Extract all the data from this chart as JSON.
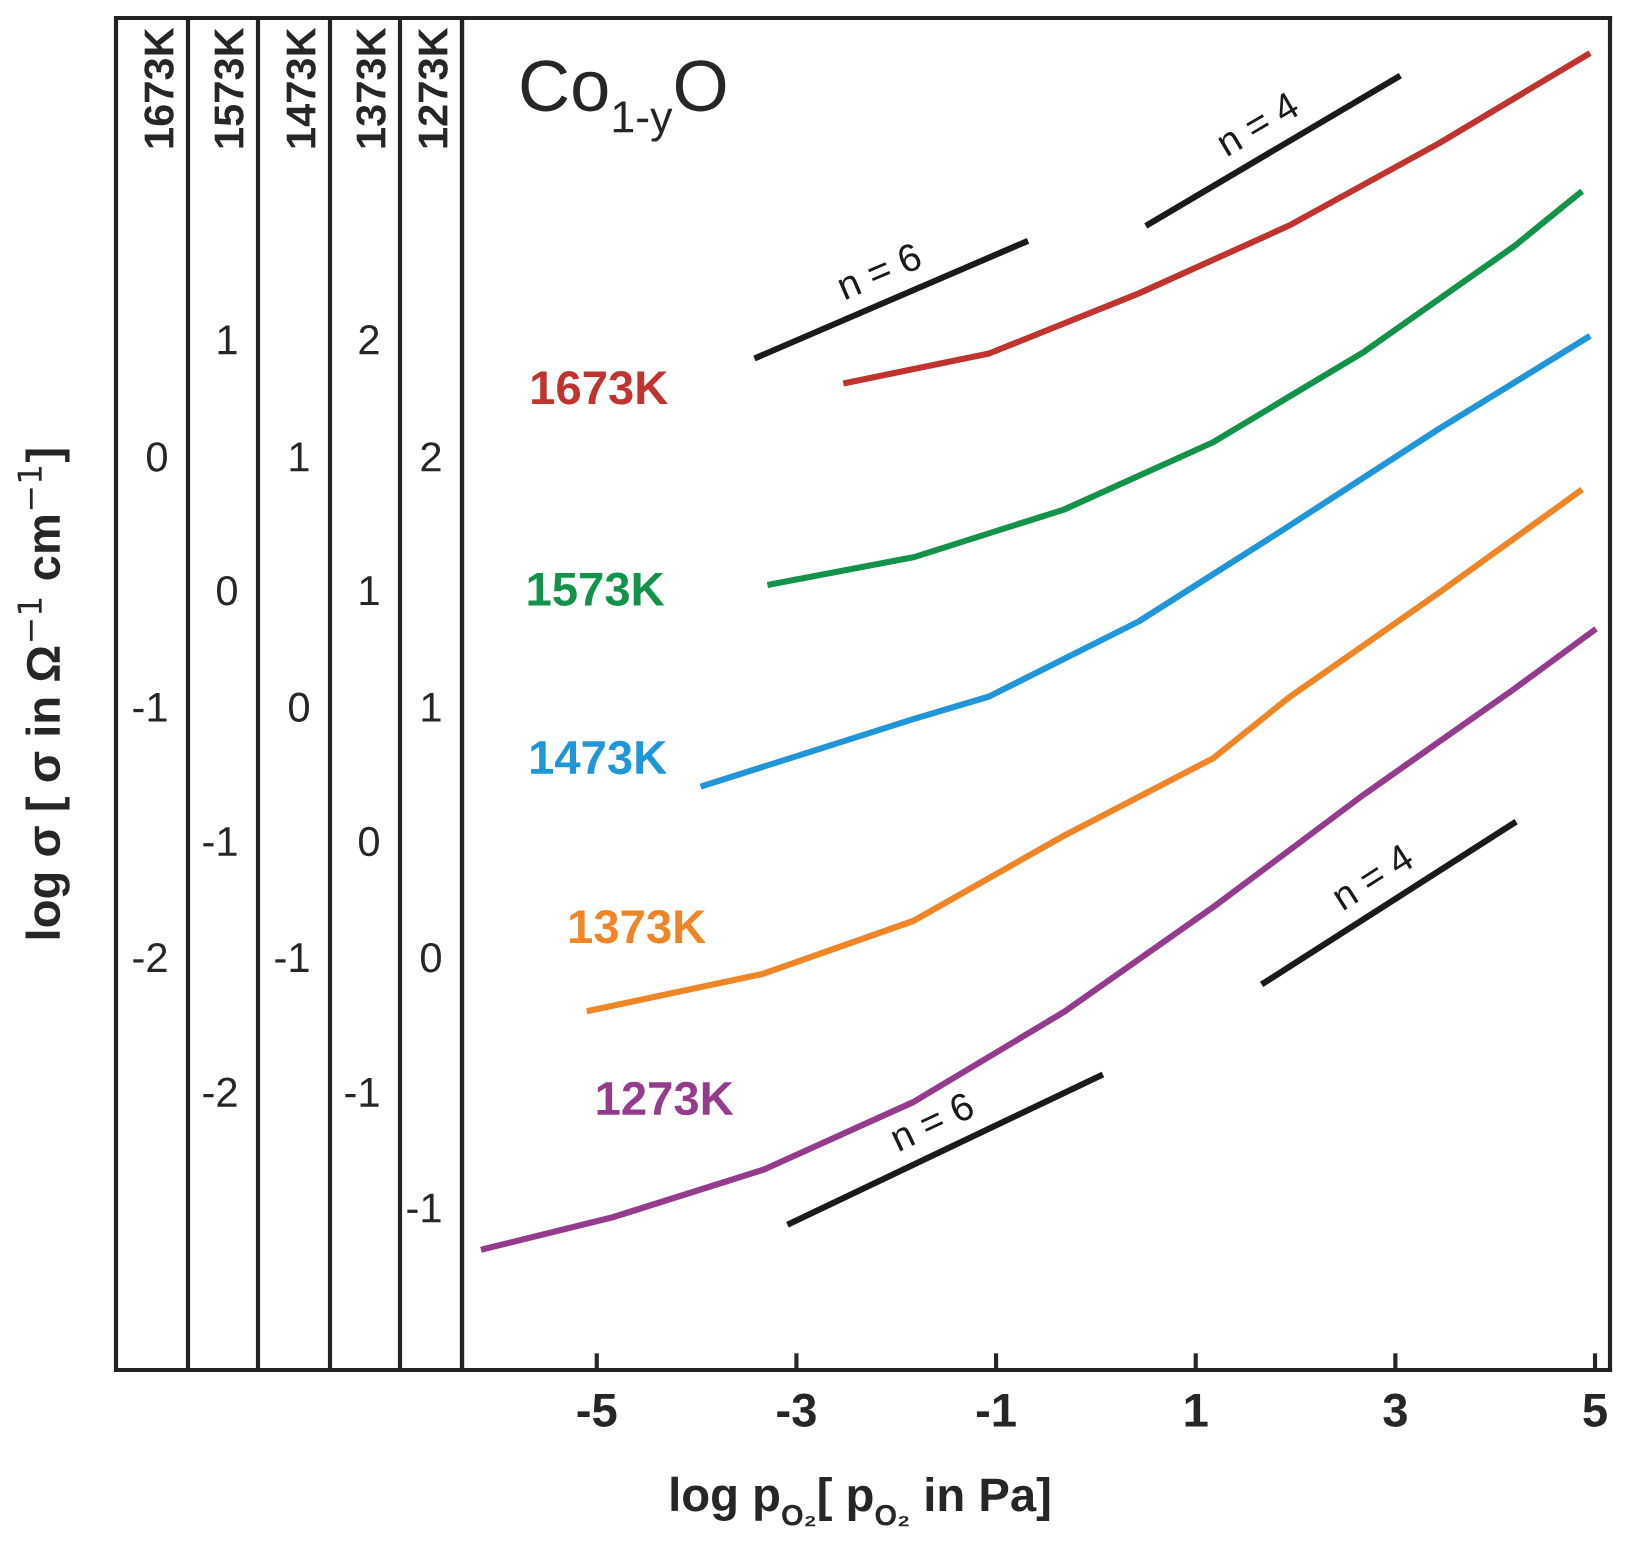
{
  "chart_data": [
    {
      "type": "line",
      "ylabel": "log σ [ σ in Ω$^{−1}$ cm$^{−1}$]",
      "xlim": [
        -6.35,
        5.15
      ],
      "ylim": [
        -3.65,
        1.75
      ],
      "yticks": [
        -2,
        -1,
        0
      ],
      "tick_labels": "y",
      "grid": false,
      "marker": "none",
      "line_style": "solid",
      "series": [
        {
          "name": "1673K",
          "color": "#c0332f",
          "x": [
            -2.53,
            -1.07,
            0.43,
            1.93,
            3.44,
            4.95
          ],
          "values": [
            0.29,
            0.41,
            0.65,
            0.92,
            1.25,
            1.61
          ]
        }
      ]
    },
    {
      "type": "line",
      "xlim": [
        -6.35,
        5.15
      ],
      "ylim": [
        -3.11,
        2.28
      ],
      "yticks": [
        -2,
        -1,
        0,
        1
      ],
      "tick_labels": "y",
      "grid": false,
      "marker": "none",
      "line_style": "solid",
      "series": [
        {
          "name": "1573K",
          "color": "#13924a",
          "x": [
            -3.29,
            -1.83,
            -0.32,
            1.18,
            2.69,
            4.19,
            4.87
          ],
          "values": [
            0.02,
            0.13,
            0.32,
            0.59,
            0.95,
            1.37,
            1.59
          ]
        }
      ]
    },
    {
      "type": "line",
      "xlim": [
        -6.35,
        5.15
      ],
      "ylim": [
        -2.65,
        2.75
      ],
      "yticks": [
        -1,
        0,
        1
      ],
      "tick_labels": "y",
      "grid": false,
      "marker": "none",
      "line_style": "solid",
      "series": [
        {
          "name": "1473K",
          "color": "#1e96d8",
          "x": [
            -3.96,
            -1.83,
            -1.07,
            0.43,
            1.93,
            3.44,
            4.95
          ],
          "values": [
            -0.32,
            -0.05,
            0.04,
            0.34,
            0.72,
            1.11,
            1.48
          ]
        }
      ]
    },
    {
      "type": "line",
      "xlim": [
        -6.35,
        5.15
      ],
      "ylim": [
        -2.11,
        3.28
      ],
      "yticks": [
        -1,
        0,
        1,
        2
      ],
      "tick_labels": "y",
      "grid": false,
      "marker": "none",
      "line_style": "solid",
      "series": [
        {
          "name": "1373K",
          "color": "#f08526",
          "x": [
            -5.1,
            -3.33,
            -1.83,
            -0.32,
            1.18,
            1.93,
            3.44,
            4.87
          ],
          "values": [
            -0.68,
            -0.53,
            -0.32,
            0.02,
            0.33,
            0.57,
            0.99,
            1.4
          ]
        }
      ]
    },
    {
      "type": "line",
      "xlabel": "log p$_{O₂}$[ p$_{O₂}$ in Pa]",
      "annotations": [
        "Co$_{1-y}$O"
      ],
      "xlim": [
        -6.35,
        5.15
      ],
      "xticks": [
        -5,
        -3,
        -1,
        1,
        3,
        5
      ],
      "ylim": [
        -1.65,
        3.75
      ],
      "yticks": [
        -1,
        0,
        1,
        2
      ],
      "grid": false,
      "marker": "none",
      "line_style": "solid",
      "series": [
        {
          "name": "1273K",
          "color": "#953b8e",
          "x": [
            -6.16,
            -4.84,
            -3.33,
            -1.83,
            -0.32,
            1.18,
            2.69,
            4.19,
            5.01
          ],
          "values": [
            -1.17,
            -1.04,
            -0.85,
            -0.58,
            -0.22,
            0.2,
            0.65,
            1.07,
            1.31
          ]
        },
        {
          "name": "n = 6",
          "color": "#1a1a1a",
          "x": [
            -3.42,
            -0.68
          ],
          "values": [
            2.39,
            2.86
          ]
        },
        {
          "name": "n = 4",
          "color": "#1a1a1a",
          "x": [
            0.5,
            3.05
          ],
          "values": [
            2.92,
            3.52
          ]
        },
        {
          "name": "n = 6",
          "color": "#1a1a1a",
          "x": [
            -3.09,
            0.07
          ],
          "values": [
            -1.07,
            -0.47
          ]
        },
        {
          "name": "n = 4",
          "color": "#1a1a1a",
          "x": [
            1.66,
            4.21
          ],
          "values": [
            -0.11,
            0.54
          ]
        }
      ]
    }
  ]
}
